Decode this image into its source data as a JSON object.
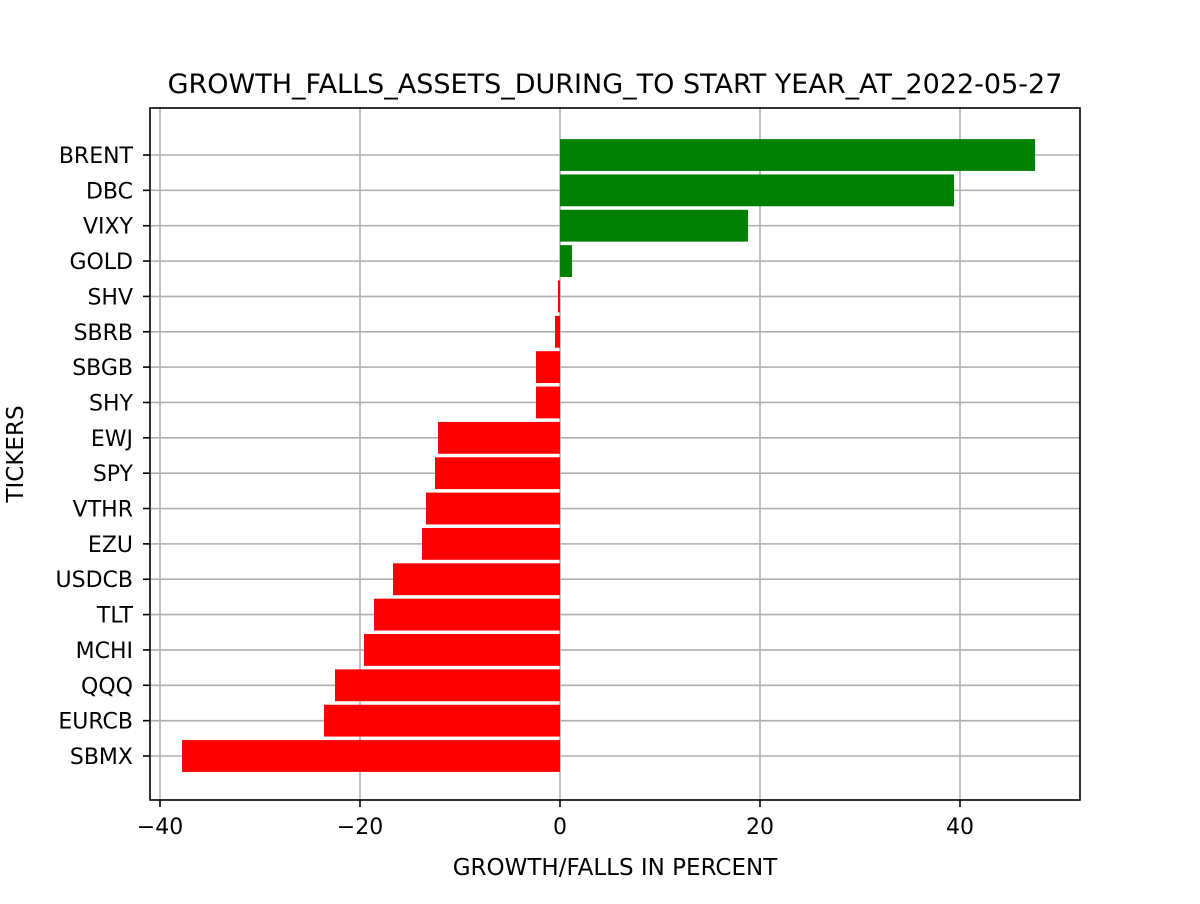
{
  "chart_data": {
    "type": "bar",
    "orientation": "horizontal",
    "title": "GROWTH_FALLS_ASSETS_DURING_TO START YEAR_AT_2022-05-27",
    "xlabel": "GROWTH/FALLS IN PERCENT",
    "ylabel": "TICKERS",
    "xlim": [
      -41,
      52
    ],
    "xticks": [
      -40,
      -20,
      0,
      20,
      40
    ],
    "xtick_labels": [
      "−40",
      "−20",
      "0",
      "20",
      "40"
    ],
    "grid": true,
    "categories": [
      "BRENT",
      "DBC",
      "VIXY",
      "GOLD",
      "SHV",
      "SBRB",
      "SBGB",
      "SHY",
      "EWJ",
      "SPY",
      "VTHR",
      "EZU",
      "USDCB",
      "TLT",
      "MCHI",
      "QQQ",
      "EURCB",
      "SBMX"
    ],
    "values": [
      47.5,
      39.4,
      18.8,
      1.2,
      -0.2,
      -0.5,
      -2.4,
      -2.4,
      -12.2,
      -12.5,
      -13.4,
      -13.8,
      -16.7,
      -18.6,
      -19.6,
      -22.5,
      -23.6,
      -37.8
    ],
    "colors": {
      "positive": "#008000",
      "negative": "#ff0000",
      "grid": "#b0b0b0",
      "axis": "#000000"
    }
  }
}
